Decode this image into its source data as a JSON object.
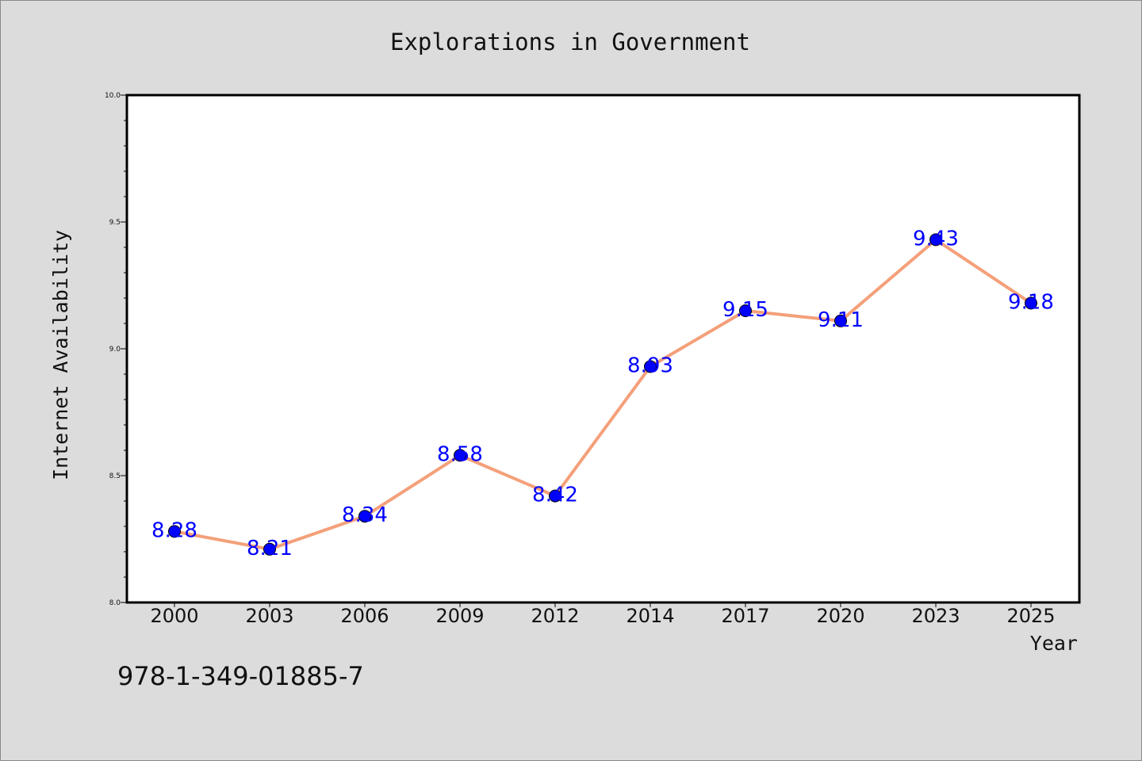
{
  "chart_data": {
    "type": "line",
    "title": "Explorations in Government",
    "xlabel": "Year",
    "ylabel": "Internet Availability",
    "categories": [
      "2000",
      "2003",
      "2006",
      "2009",
      "2012",
      "2014",
      "2017",
      "2020",
      "2023",
      "2025"
    ],
    "series": [
      {
        "values": [
          8.28,
          8.21,
          8.34,
          8.58,
          8.42,
          8.93,
          9.15,
          9.11,
          9.43,
          9.18
        ],
        "labels": [
          "8.28",
          "8.21",
          "8.34",
          "8.58",
          "8.42",
          "8.93",
          "9.15",
          "9.11",
          "9.43",
          "9.18"
        ]
      }
    ],
    "ylim": [
      8.0,
      10.0
    ],
    "yticks": [
      8.0,
      8.5,
      9.0,
      9.5,
      10.0
    ],
    "ytick_labels": [
      "8.0",
      "8.5",
      "9.0",
      "9.5",
      "10.0"
    ],
    "grid": false,
    "colors": {
      "line": "#f4a07a",
      "marker": "#0000ff",
      "label": "#0000ff",
      "plot_background": "#ffffff",
      "figure_background": "#dcdcdc"
    }
  },
  "annotation": {
    "isbn": "978-1-349-01885-7"
  }
}
